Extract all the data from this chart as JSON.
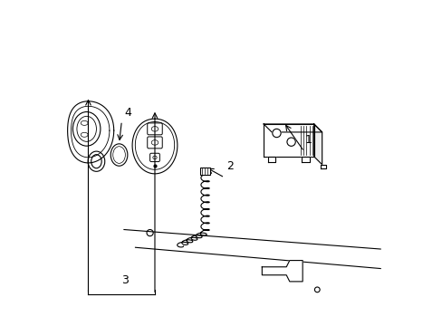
{
  "bg_color": "#ffffff",
  "line_color": "#000000",
  "label_color": "#000000",
  "fig_width": 4.89,
  "fig_height": 3.6,
  "dpi": 100
}
